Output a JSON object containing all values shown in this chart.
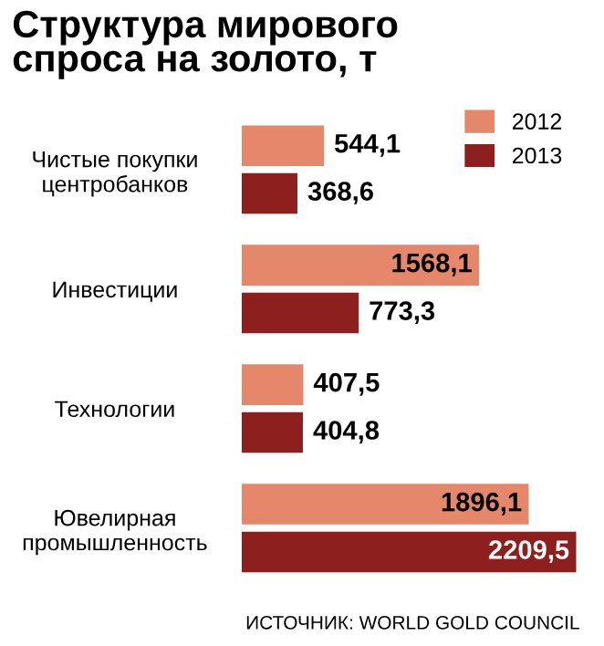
{
  "chart_data": {
    "type": "bar",
    "orientation": "horizontal",
    "title": "Структура мирового\nспроса на золото, т",
    "categories": [
      "Чистые покупки\nцентробанков",
      "Инвестиции",
      "Технологии",
      "Ювелирная\nпромышленность"
    ],
    "series": [
      {
        "name": "2012",
        "color": "#e5876a",
        "values": [
          544.1,
          1568.1,
          407.5,
          1896.1
        ],
        "value_labels": [
          "544,1",
          "1568,1",
          "407,5",
          "1896,1"
        ]
      },
      {
        "name": "2013",
        "color": "#8e1f1f",
        "values": [
          368.6,
          773.3,
          404.8,
          2209.5
        ],
        "value_labels": [
          "368,6",
          "773,3",
          "404,8",
          "2209,5"
        ]
      }
    ],
    "legend": "top right",
    "grid": false,
    "annotations": [
      "ИСТОЧНИК: WORLD GOLD COUNCIL"
    ]
  }
}
